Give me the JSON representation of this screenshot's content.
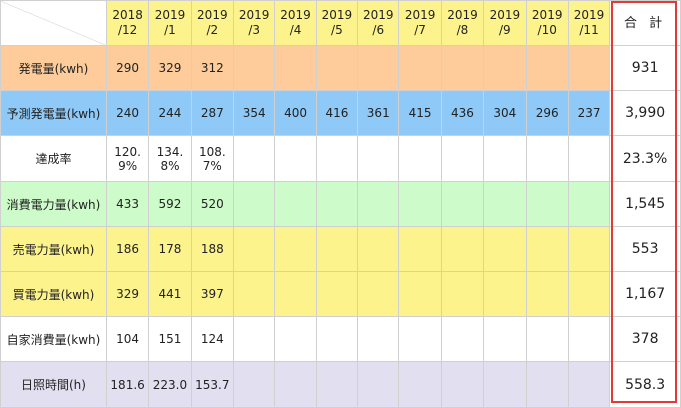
{
  "header": {
    "months": [
      {
        "year": "2018",
        "month": "/12"
      },
      {
        "year": "2019",
        "month": "/1"
      },
      {
        "year": "2019",
        "month": "/2"
      },
      {
        "year": "2019",
        "month": "/3"
      },
      {
        "year": "2019",
        "month": "/4"
      },
      {
        "year": "2019",
        "month": "/5"
      },
      {
        "year": "2019",
        "month": "/6"
      },
      {
        "year": "2019",
        "month": "/7"
      },
      {
        "year": "2019",
        "month": "/8"
      },
      {
        "year": "2019",
        "month": "/9"
      },
      {
        "year": "2019",
        "month": "/10"
      },
      {
        "year": "2019",
        "month": "/11"
      }
    ],
    "total_label": "合 計"
  },
  "rows": [
    {
      "label": "発電量(kwh)",
      "values": [
        "290",
        "329",
        "312",
        "",
        "",
        "",
        "",
        "",
        "",
        "",
        "",
        ""
      ],
      "total": "931"
    },
    {
      "label": "予測発電量(kwh)",
      "values": [
        "240",
        "244",
        "287",
        "354",
        "400",
        "416",
        "361",
        "415",
        "436",
        "304",
        "296",
        "237"
      ],
      "total": "3,990"
    },
    {
      "label": "達成率",
      "values": [
        [
          "120.",
          "9%"
        ],
        [
          "134.",
          "8%"
        ],
        [
          "108.",
          "7%"
        ],
        "",
        "",
        "",
        "",
        "",
        "",
        "",
        "",
        ""
      ],
      "total": "23.3%"
    },
    {
      "label": "消費電力量(kwh)",
      "values": [
        "433",
        "592",
        "520",
        "",
        "",
        "",
        "",
        "",
        "",
        "",
        "",
        ""
      ],
      "total": "1,545"
    },
    {
      "label": "売電力量(kwh)",
      "values": [
        "186",
        "178",
        "188",
        "",
        "",
        "",
        "",
        "",
        "",
        "",
        "",
        ""
      ],
      "total": "553"
    },
    {
      "label": "買電力量(kwh)",
      "values": [
        "329",
        "441",
        "397",
        "",
        "",
        "",
        "",
        "",
        "",
        "",
        "",
        ""
      ],
      "total": "1,167"
    },
    {
      "label": "自家消費量(kwh)",
      "values": [
        "104",
        "151",
        "124",
        "",
        "",
        "",
        "",
        "",
        "",
        "",
        "",
        ""
      ],
      "total": "378"
    },
    {
      "label": "日照時間(h)",
      "values": [
        "181.6",
        "223.0",
        "153.7",
        "",
        "",
        "",
        "",
        "",
        "",
        "",
        "",
        ""
      ],
      "total": "558.3"
    }
  ],
  "colors": {
    "header": "#fdf38d",
    "generation": "#fdcc9a",
    "predicted": "#8ec9f7",
    "consumption": "#cdfcca",
    "sell_buy": "#fdf38d",
    "sunshine": "#e2e0f0",
    "total_frame": "#e53935"
  }
}
